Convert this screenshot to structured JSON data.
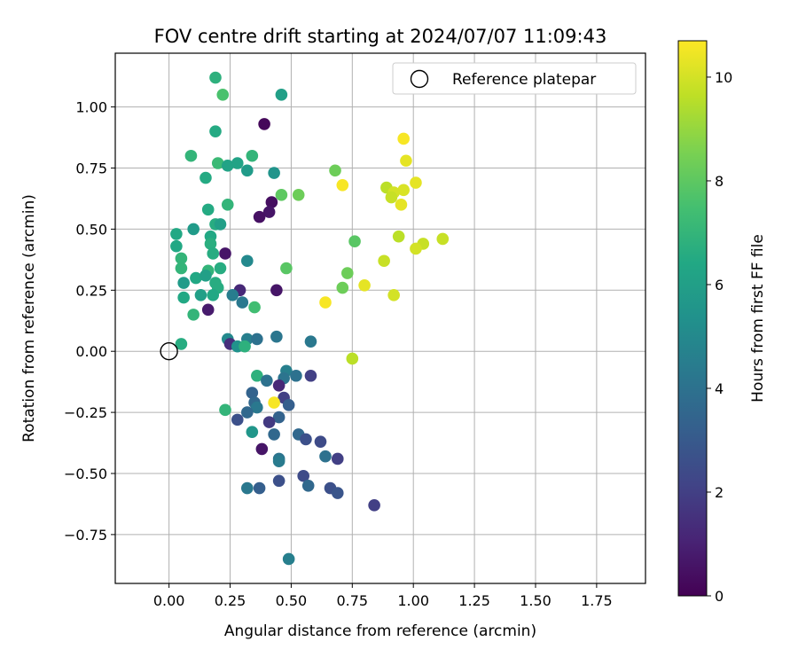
{
  "chart_data": {
    "type": "scatter",
    "title": "FOV centre drift starting at 2024/07/07 11:09:43",
    "xlabel": "Angular distance from reference (arcmin)",
    "ylabel": "Rotation from reference (arcmin)",
    "xlim": [
      -0.22,
      1.95
    ],
    "ylim": [
      -0.95,
      1.22
    ],
    "xticks": [
      "0.00",
      "0.25",
      "0.50",
      "0.75",
      "1.00",
      "1.25",
      "1.50",
      "1.75"
    ],
    "xtick_values": [
      0,
      0.25,
      0.5,
      0.75,
      1.0,
      1.25,
      1.5,
      1.75
    ],
    "yticks": [
      "1.00",
      "0.75",
      "0.50",
      "0.25",
      "0.00",
      "−0.25",
      "−0.50",
      "−0.75"
    ],
    "ytick_values": [
      1.0,
      0.75,
      0.5,
      0.25,
      0,
      -0.25,
      -0.5,
      -0.75
    ],
    "grid": true,
    "legend": {
      "placement": "top-right",
      "entries": [
        "Reference platepar"
      ]
    },
    "reference": {
      "x": 0.0,
      "y": 0.0,
      "marker": "open-circle",
      "color": "#000000"
    },
    "colorbar": {
      "label": "Hours from first FF file",
      "range": [
        0,
        10.7
      ],
      "ticks": [
        "0",
        "2",
        "4",
        "6",
        "8",
        "10"
      ],
      "tick_values": [
        0,
        2,
        4,
        6,
        8,
        10
      ],
      "colormap": "viridis"
    },
    "points": [
      {
        "x": 0.19,
        "y": 1.12,
        "h": 6.8
      },
      {
        "x": 0.22,
        "y": 1.05,
        "h": 7.6
      },
      {
        "x": 0.46,
        "y": 1.05,
        "h": 6.0
      },
      {
        "x": 0.39,
        "y": 0.93,
        "h": 0.2
      },
      {
        "x": 0.19,
        "y": 0.9,
        "h": 6.5
      },
      {
        "x": 0.96,
        "y": 0.87,
        "h": 10.6
      },
      {
        "x": 0.34,
        "y": 0.8,
        "h": 7.0
      },
      {
        "x": 0.09,
        "y": 0.8,
        "h": 7.0
      },
      {
        "x": 0.97,
        "y": 0.78,
        "h": 10.3
      },
      {
        "x": 0.2,
        "y": 0.77,
        "h": 7.2
      },
      {
        "x": 0.24,
        "y": 0.76,
        "h": 6.2
      },
      {
        "x": 0.28,
        "y": 0.77,
        "h": 6.2
      },
      {
        "x": 0.32,
        "y": 0.74,
        "h": 5.8
      },
      {
        "x": 0.43,
        "y": 0.73,
        "h": 5.5
      },
      {
        "x": 0.68,
        "y": 0.74,
        "h": 8.3
      },
      {
        "x": 0.15,
        "y": 0.71,
        "h": 6.5
      },
      {
        "x": 0.71,
        "y": 0.68,
        "h": 10.6
      },
      {
        "x": 1.01,
        "y": 0.69,
        "h": 10.3
      },
      {
        "x": 0.89,
        "y": 0.67,
        "h": 9.6
      },
      {
        "x": 0.96,
        "y": 0.66,
        "h": 10.1
      },
      {
        "x": 0.92,
        "y": 0.65,
        "h": 10.0
      },
      {
        "x": 0.46,
        "y": 0.64,
        "h": 8.0
      },
      {
        "x": 0.53,
        "y": 0.64,
        "h": 8.3
      },
      {
        "x": 0.91,
        "y": 0.63,
        "h": 9.8
      },
      {
        "x": 0.42,
        "y": 0.61,
        "h": 0.4
      },
      {
        "x": 0.95,
        "y": 0.6,
        "h": 10.3
      },
      {
        "x": 0.24,
        "y": 0.6,
        "h": 7.0
      },
      {
        "x": 0.16,
        "y": 0.58,
        "h": 6.5
      },
      {
        "x": 0.41,
        "y": 0.57,
        "h": 0.6
      },
      {
        "x": 0.37,
        "y": 0.55,
        "h": 0.5
      },
      {
        "x": 0.19,
        "y": 0.52,
        "h": 6.6
      },
      {
        "x": 0.21,
        "y": 0.52,
        "h": 6.0
      },
      {
        "x": 0.1,
        "y": 0.5,
        "h": 5.8
      },
      {
        "x": 0.03,
        "y": 0.48,
        "h": 6.4
      },
      {
        "x": 0.94,
        "y": 0.47,
        "h": 9.6
      },
      {
        "x": 1.12,
        "y": 0.46,
        "h": 9.8
      },
      {
        "x": 0.17,
        "y": 0.47,
        "h": 6.4
      },
      {
        "x": 0.76,
        "y": 0.45,
        "h": 7.9
      },
      {
        "x": 0.17,
        "y": 0.44,
        "h": 6.7
      },
      {
        "x": 1.04,
        "y": 0.44,
        "h": 9.8
      },
      {
        "x": 0.03,
        "y": 0.43,
        "h": 6.4
      },
      {
        "x": 1.01,
        "y": 0.42,
        "h": 10.0
      },
      {
        "x": 0.18,
        "y": 0.4,
        "h": 6.6
      },
      {
        "x": 0.23,
        "y": 0.4,
        "h": 0.6
      },
      {
        "x": 0.05,
        "y": 0.38,
        "h": 7.0
      },
      {
        "x": 0.32,
        "y": 0.37,
        "h": 5.0
      },
      {
        "x": 0.88,
        "y": 0.37,
        "h": 9.8
      },
      {
        "x": 0.05,
        "y": 0.34,
        "h": 7.0
      },
      {
        "x": 0.48,
        "y": 0.34,
        "h": 7.9
      },
      {
        "x": 0.21,
        "y": 0.34,
        "h": 6.6
      },
      {
        "x": 0.16,
        "y": 0.33,
        "h": 7.0
      },
      {
        "x": 0.73,
        "y": 0.32,
        "h": 8.3
      },
      {
        "x": 0.11,
        "y": 0.3,
        "h": 6.4
      },
      {
        "x": 0.15,
        "y": 0.31,
        "h": 6.0
      },
      {
        "x": 0.06,
        "y": 0.28,
        "h": 5.8
      },
      {
        "x": 0.19,
        "y": 0.28,
        "h": 6.6
      },
      {
        "x": 0.8,
        "y": 0.27,
        "h": 10.3
      },
      {
        "x": 0.71,
        "y": 0.26,
        "h": 8.3
      },
      {
        "x": 0.29,
        "y": 0.25,
        "h": 1.2
      },
      {
        "x": 0.44,
        "y": 0.25,
        "h": 0.6
      },
      {
        "x": 0.2,
        "y": 0.26,
        "h": 6.6
      },
      {
        "x": 0.13,
        "y": 0.23,
        "h": 6.0
      },
      {
        "x": 0.26,
        "y": 0.23,
        "h": 4.5
      },
      {
        "x": 0.92,
        "y": 0.23,
        "h": 10.0
      },
      {
        "x": 0.18,
        "y": 0.23,
        "h": 6.4
      },
      {
        "x": 0.06,
        "y": 0.22,
        "h": 6.4
      },
      {
        "x": 0.3,
        "y": 0.2,
        "h": 4.3
      },
      {
        "x": 0.64,
        "y": 0.2,
        "h": 10.6
      },
      {
        "x": 0.35,
        "y": 0.18,
        "h": 7.4
      },
      {
        "x": 0.16,
        "y": 0.17,
        "h": 0.8
      },
      {
        "x": 0.1,
        "y": 0.15,
        "h": 7.0
      },
      {
        "x": 0.44,
        "y": 0.06,
        "h": 4.2
      },
      {
        "x": 0.24,
        "y": 0.05,
        "h": 5.0
      },
      {
        "x": 0.32,
        "y": 0.05,
        "h": 4.6
      },
      {
        "x": 0.36,
        "y": 0.05,
        "h": 4.0
      },
      {
        "x": 0.58,
        "y": 0.04,
        "h": 4.3
      },
      {
        "x": 0.05,
        "y": 0.03,
        "h": 6.6
      },
      {
        "x": 0.25,
        "y": 0.03,
        "h": 1.4
      },
      {
        "x": 0.28,
        "y": 0.02,
        "h": 5.4
      },
      {
        "x": 0.31,
        "y": 0.02,
        "h": 6.8
      },
      {
        "x": 0.75,
        "y": -0.03,
        "h": 9.6
      },
      {
        "x": 0.48,
        "y": -0.08,
        "h": 4.6
      },
      {
        "x": 0.52,
        "y": -0.1,
        "h": 4.0
      },
      {
        "x": 0.58,
        "y": -0.1,
        "h": 2.0
      },
      {
        "x": 0.36,
        "y": -0.1,
        "h": 6.8
      },
      {
        "x": 0.47,
        "y": -0.11,
        "h": 4.1
      },
      {
        "x": 0.4,
        "y": -0.12,
        "h": 4.0
      },
      {
        "x": 0.45,
        "y": -0.14,
        "h": 1.2
      },
      {
        "x": 0.34,
        "y": -0.17,
        "h": 3.4
      },
      {
        "x": 0.47,
        "y": -0.19,
        "h": 2.0
      },
      {
        "x": 0.43,
        "y": -0.21,
        "h": 10.6
      },
      {
        "x": 0.35,
        "y": -0.21,
        "h": 3.6
      },
      {
        "x": 0.36,
        "y": -0.23,
        "h": 4.3
      },
      {
        "x": 0.49,
        "y": -0.22,
        "h": 3.2
      },
      {
        "x": 0.23,
        "y": -0.24,
        "h": 7.0
      },
      {
        "x": 0.32,
        "y": -0.25,
        "h": 3.6
      },
      {
        "x": 0.45,
        "y": -0.27,
        "h": 3.4
      },
      {
        "x": 0.28,
        "y": -0.28,
        "h": 2.6
      },
      {
        "x": 0.41,
        "y": -0.29,
        "h": 1.8
      },
      {
        "x": 0.34,
        "y": -0.33,
        "h": 5.6
      },
      {
        "x": 0.43,
        "y": -0.34,
        "h": 3.6
      },
      {
        "x": 0.53,
        "y": -0.34,
        "h": 3.6
      },
      {
        "x": 0.56,
        "y": -0.36,
        "h": 2.6
      },
      {
        "x": 0.62,
        "y": -0.37,
        "h": 2.4
      },
      {
        "x": 0.38,
        "y": -0.4,
        "h": 0.6
      },
      {
        "x": 0.64,
        "y": -0.43,
        "h": 4.0
      },
      {
        "x": 0.69,
        "y": -0.44,
        "h": 2.0
      },
      {
        "x": 0.45,
        "y": -0.44,
        "h": 4.1
      },
      {
        "x": 0.45,
        "y": -0.45,
        "h": 4.4
      },
      {
        "x": 0.55,
        "y": -0.51,
        "h": 2.4
      },
      {
        "x": 0.45,
        "y": -0.53,
        "h": 2.6
      },
      {
        "x": 0.57,
        "y": -0.55,
        "h": 3.6
      },
      {
        "x": 0.32,
        "y": -0.56,
        "h": 4.3
      },
      {
        "x": 0.37,
        "y": -0.56,
        "h": 3.2
      },
      {
        "x": 0.66,
        "y": -0.56,
        "h": 2.6
      },
      {
        "x": 0.69,
        "y": -0.58,
        "h": 2.8
      },
      {
        "x": 0.84,
        "y": -0.63,
        "h": 2.0
      },
      {
        "x": 0.49,
        "y": -0.85,
        "h": 4.6
      }
    ]
  }
}
